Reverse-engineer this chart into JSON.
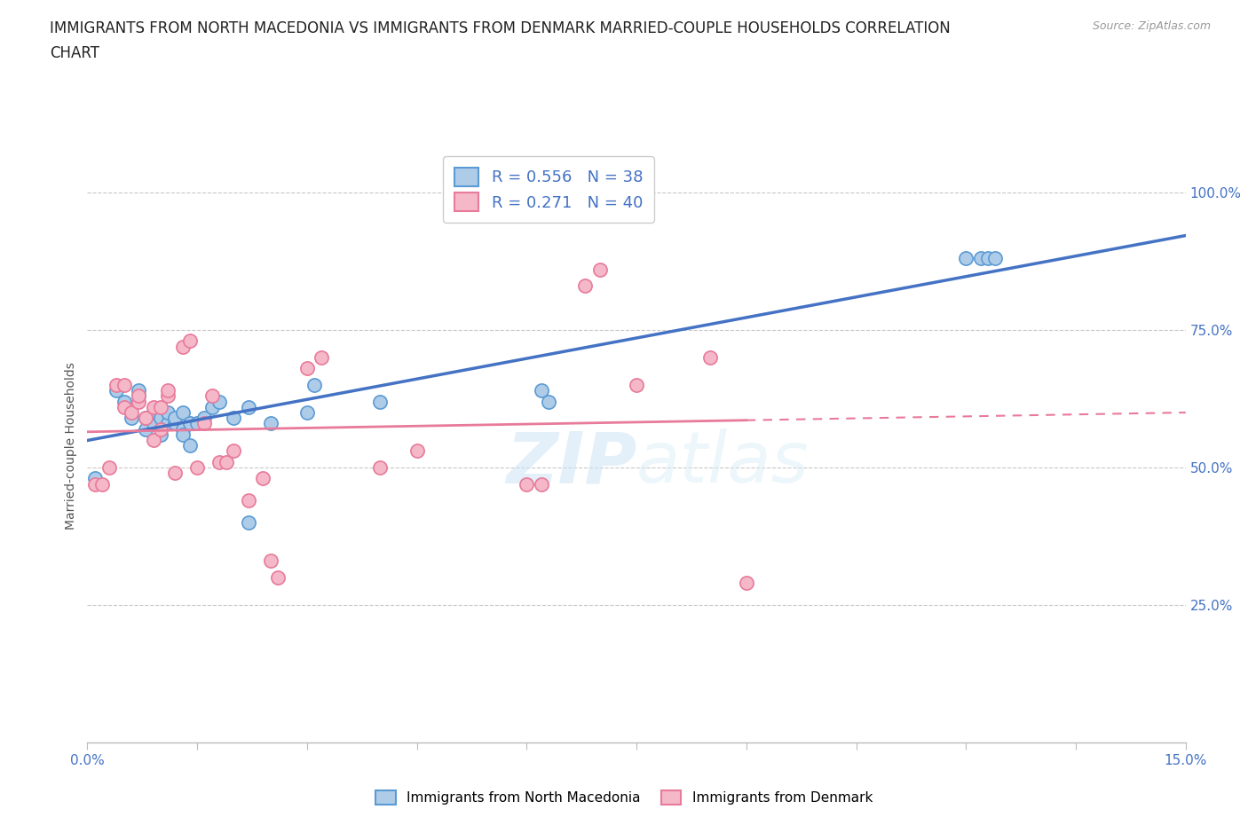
{
  "title_line1": "IMMIGRANTS FROM NORTH MACEDONIA VS IMMIGRANTS FROM DENMARK MARRIED-COUPLE HOUSEHOLDS CORRELATION",
  "title_line2": "CHART",
  "source_text": "Source: ZipAtlas.com",
  "ylabel": "Married-couple Households",
  "xlim": [
    0.0,
    0.15
  ],
  "ylim": [
    0.0,
    1.08
  ],
  "xticks": [
    0.0,
    0.015,
    0.03,
    0.045,
    0.06,
    0.075,
    0.09,
    0.105,
    0.12,
    0.135,
    0.15
  ],
  "yticks_right": [
    0.25,
    0.5,
    0.75,
    1.0
  ],
  "ytick_right_labels": [
    "25.0%",
    "50.0%",
    "75.0%",
    "100.0%"
  ],
  "series1_color": "#aecce8",
  "series1_edge": "#5b9bd5",
  "series1_label": "Immigrants from North Macedonia",
  "series1_R": 0.556,
  "series1_N": 38,
  "series1_line_color": "#4472c4",
  "series2_color": "#f4b8c8",
  "series2_edge": "#e87a9a",
  "series2_label": "Immigrants from Denmark",
  "series2_R": 0.271,
  "series2_N": 40,
  "series2_line_color": "#e87a9a",
  "grid_color": "#c8c8c8",
  "background_color": "#ffffff",
  "title_fontsize": 12,
  "axis_label_fontsize": 10,
  "tick_label_fontsize": 11,
  "scatter1_x": [
    0.001,
    0.004,
    0.005,
    0.006,
    0.007,
    0.007,
    0.008,
    0.008,
    0.009,
    0.009,
    0.01,
    0.01,
    0.011,
    0.011,
    0.012,
    0.012,
    0.013,
    0.013,
    0.013,
    0.014,
    0.014,
    0.015,
    0.016,
    0.017,
    0.018,
    0.02,
    0.022,
    0.022,
    0.025,
    0.03,
    0.031,
    0.04,
    0.062,
    0.063,
    0.12,
    0.122,
    0.123,
    0.124
  ],
  "scatter1_y": [
    0.48,
    0.64,
    0.62,
    0.59,
    0.63,
    0.64,
    0.57,
    0.59,
    0.58,
    0.6,
    0.56,
    0.59,
    0.58,
    0.6,
    0.58,
    0.59,
    0.57,
    0.6,
    0.56,
    0.54,
    0.58,
    0.58,
    0.59,
    0.61,
    0.62,
    0.59,
    0.61,
    0.4,
    0.58,
    0.6,
    0.65,
    0.62,
    0.64,
    0.62,
    0.88,
    0.88,
    0.88,
    0.88
  ],
  "scatter2_x": [
    0.001,
    0.002,
    0.003,
    0.004,
    0.005,
    0.005,
    0.006,
    0.007,
    0.007,
    0.008,
    0.009,
    0.009,
    0.01,
    0.01,
    0.011,
    0.011,
    0.012,
    0.013,
    0.014,
    0.015,
    0.016,
    0.017,
    0.018,
    0.019,
    0.02,
    0.022,
    0.024,
    0.025,
    0.026,
    0.03,
    0.032,
    0.04,
    0.045,
    0.06,
    0.062,
    0.068,
    0.07,
    0.075,
    0.085,
    0.09
  ],
  "scatter2_y": [
    0.47,
    0.47,
    0.5,
    0.65,
    0.61,
    0.65,
    0.6,
    0.62,
    0.63,
    0.59,
    0.55,
    0.61,
    0.57,
    0.61,
    0.63,
    0.64,
    0.49,
    0.72,
    0.73,
    0.5,
    0.58,
    0.63,
    0.51,
    0.51,
    0.53,
    0.44,
    0.48,
    0.33,
    0.3,
    0.68,
    0.7,
    0.5,
    0.53,
    0.47,
    0.47,
    0.83,
    0.86,
    0.65,
    0.7,
    0.29
  ]
}
